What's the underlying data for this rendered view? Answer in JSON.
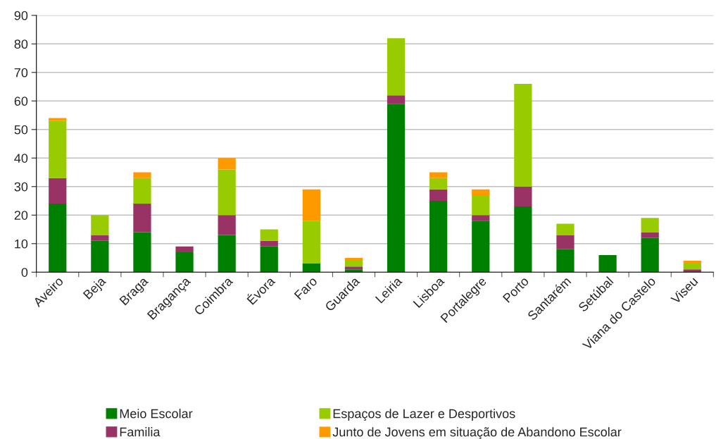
{
  "chart_data": {
    "type": "bar",
    "stacked": true,
    "categories": [
      "Aveiro",
      "Beja",
      "Braga",
      "Bragança",
      "Coimbra",
      "Évora",
      "Faro",
      "Guarda",
      "Leiria",
      "Lisboa",
      "Portalegre",
      "Porto",
      "Santarém",
      "Setúbal",
      "Viana do Castelo",
      "Viseu"
    ],
    "series": [
      {
        "name": "Meio Escolar",
        "color": "#008000",
        "values": [
          24,
          11,
          14,
          7,
          13,
          9,
          3,
          1,
          59,
          25,
          18,
          23,
          8,
          6,
          12,
          0
        ]
      },
      {
        "name": "Familia",
        "color": "#993366",
        "values": [
          9,
          2,
          10,
          2,
          7,
          2,
          0,
          1,
          3,
          4,
          2,
          7,
          5,
          0,
          2,
          1
        ]
      },
      {
        "name": "Espaços de Lazer e Desportivos",
        "color": "#99cc00",
        "values": [
          20,
          7,
          9,
          0,
          16,
          4,
          15,
          2,
          20,
          4,
          7,
          36,
          4,
          0,
          5,
          2
        ]
      },
      {
        "name": "Junto de Jovens em situação de Abandono Escolar",
        "color": "#ff9900",
        "values": [
          1,
          0,
          2,
          0,
          4,
          0,
          11,
          1,
          0,
          2,
          2,
          0,
          0,
          0,
          0,
          1
        ]
      }
    ],
    "ylim": [
      0,
      90
    ],
    "yticks": [
      0,
      10,
      20,
      30,
      40,
      50,
      60,
      70,
      80,
      90
    ],
    "grid": "y",
    "legend": "bottom"
  }
}
